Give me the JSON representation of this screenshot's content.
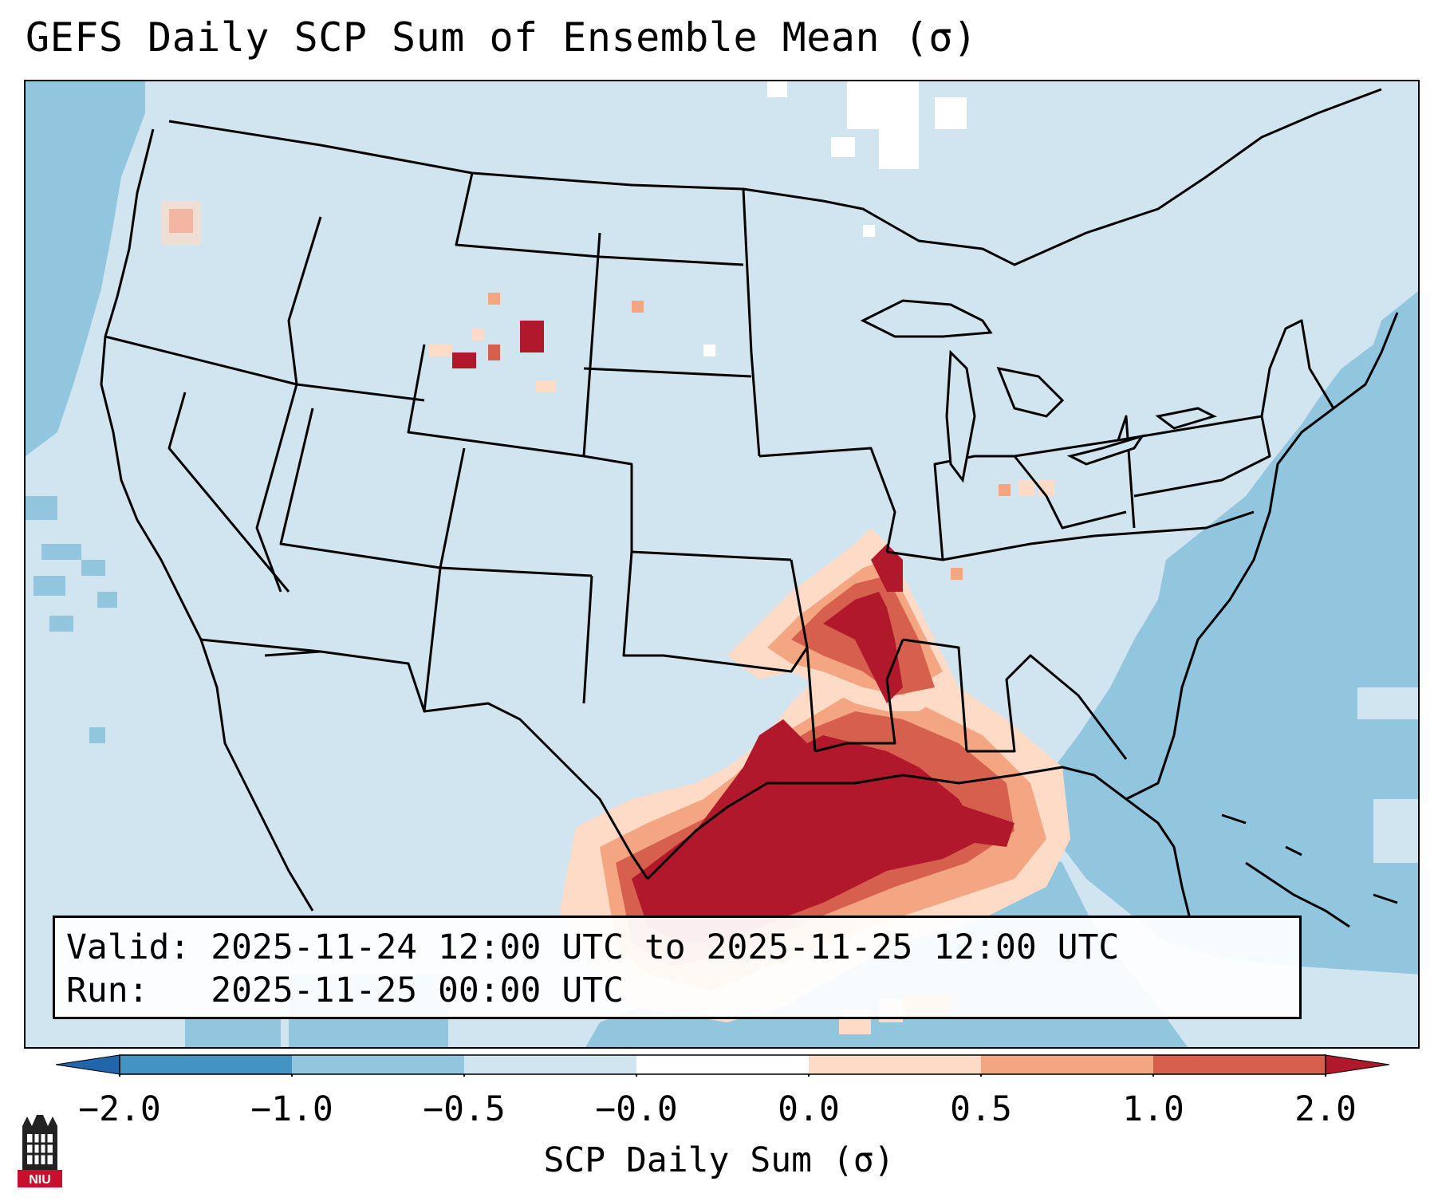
{
  "title": "GEFS Daily SCP Sum of Ensemble Mean (σ)",
  "info": {
    "valid_label": "Valid:",
    "valid_value": "2025-11-24 12:00 UTC to 2025-11-25 12:00 UTC",
    "run_label": "Run:",
    "run_value": "2025-11-25 00:00 UTC"
  },
  "colorbar": {
    "label": "SCP Daily Sum (σ)",
    "ticks": [
      "−2.0",
      "−1.0",
      "−0.5",
      "−0.0",
      "0.0",
      "0.5",
      "1.0",
      "2.0"
    ],
    "bin_colors": [
      "#4393c3",
      "#92c5de",
      "#d1e5f0",
      "#ffffff",
      "#fddbc7",
      "#f4a582",
      "#d6604d"
    ],
    "extend_low_color": "#2166ac",
    "extend_high_color": "#b2182b"
  },
  "map": {
    "region": "Continental United States",
    "background_color": "#d1e5f0",
    "ocean_color": "#92c5de",
    "max_color": "#b2182b"
  },
  "logo": {
    "text": "NIU"
  }
}
